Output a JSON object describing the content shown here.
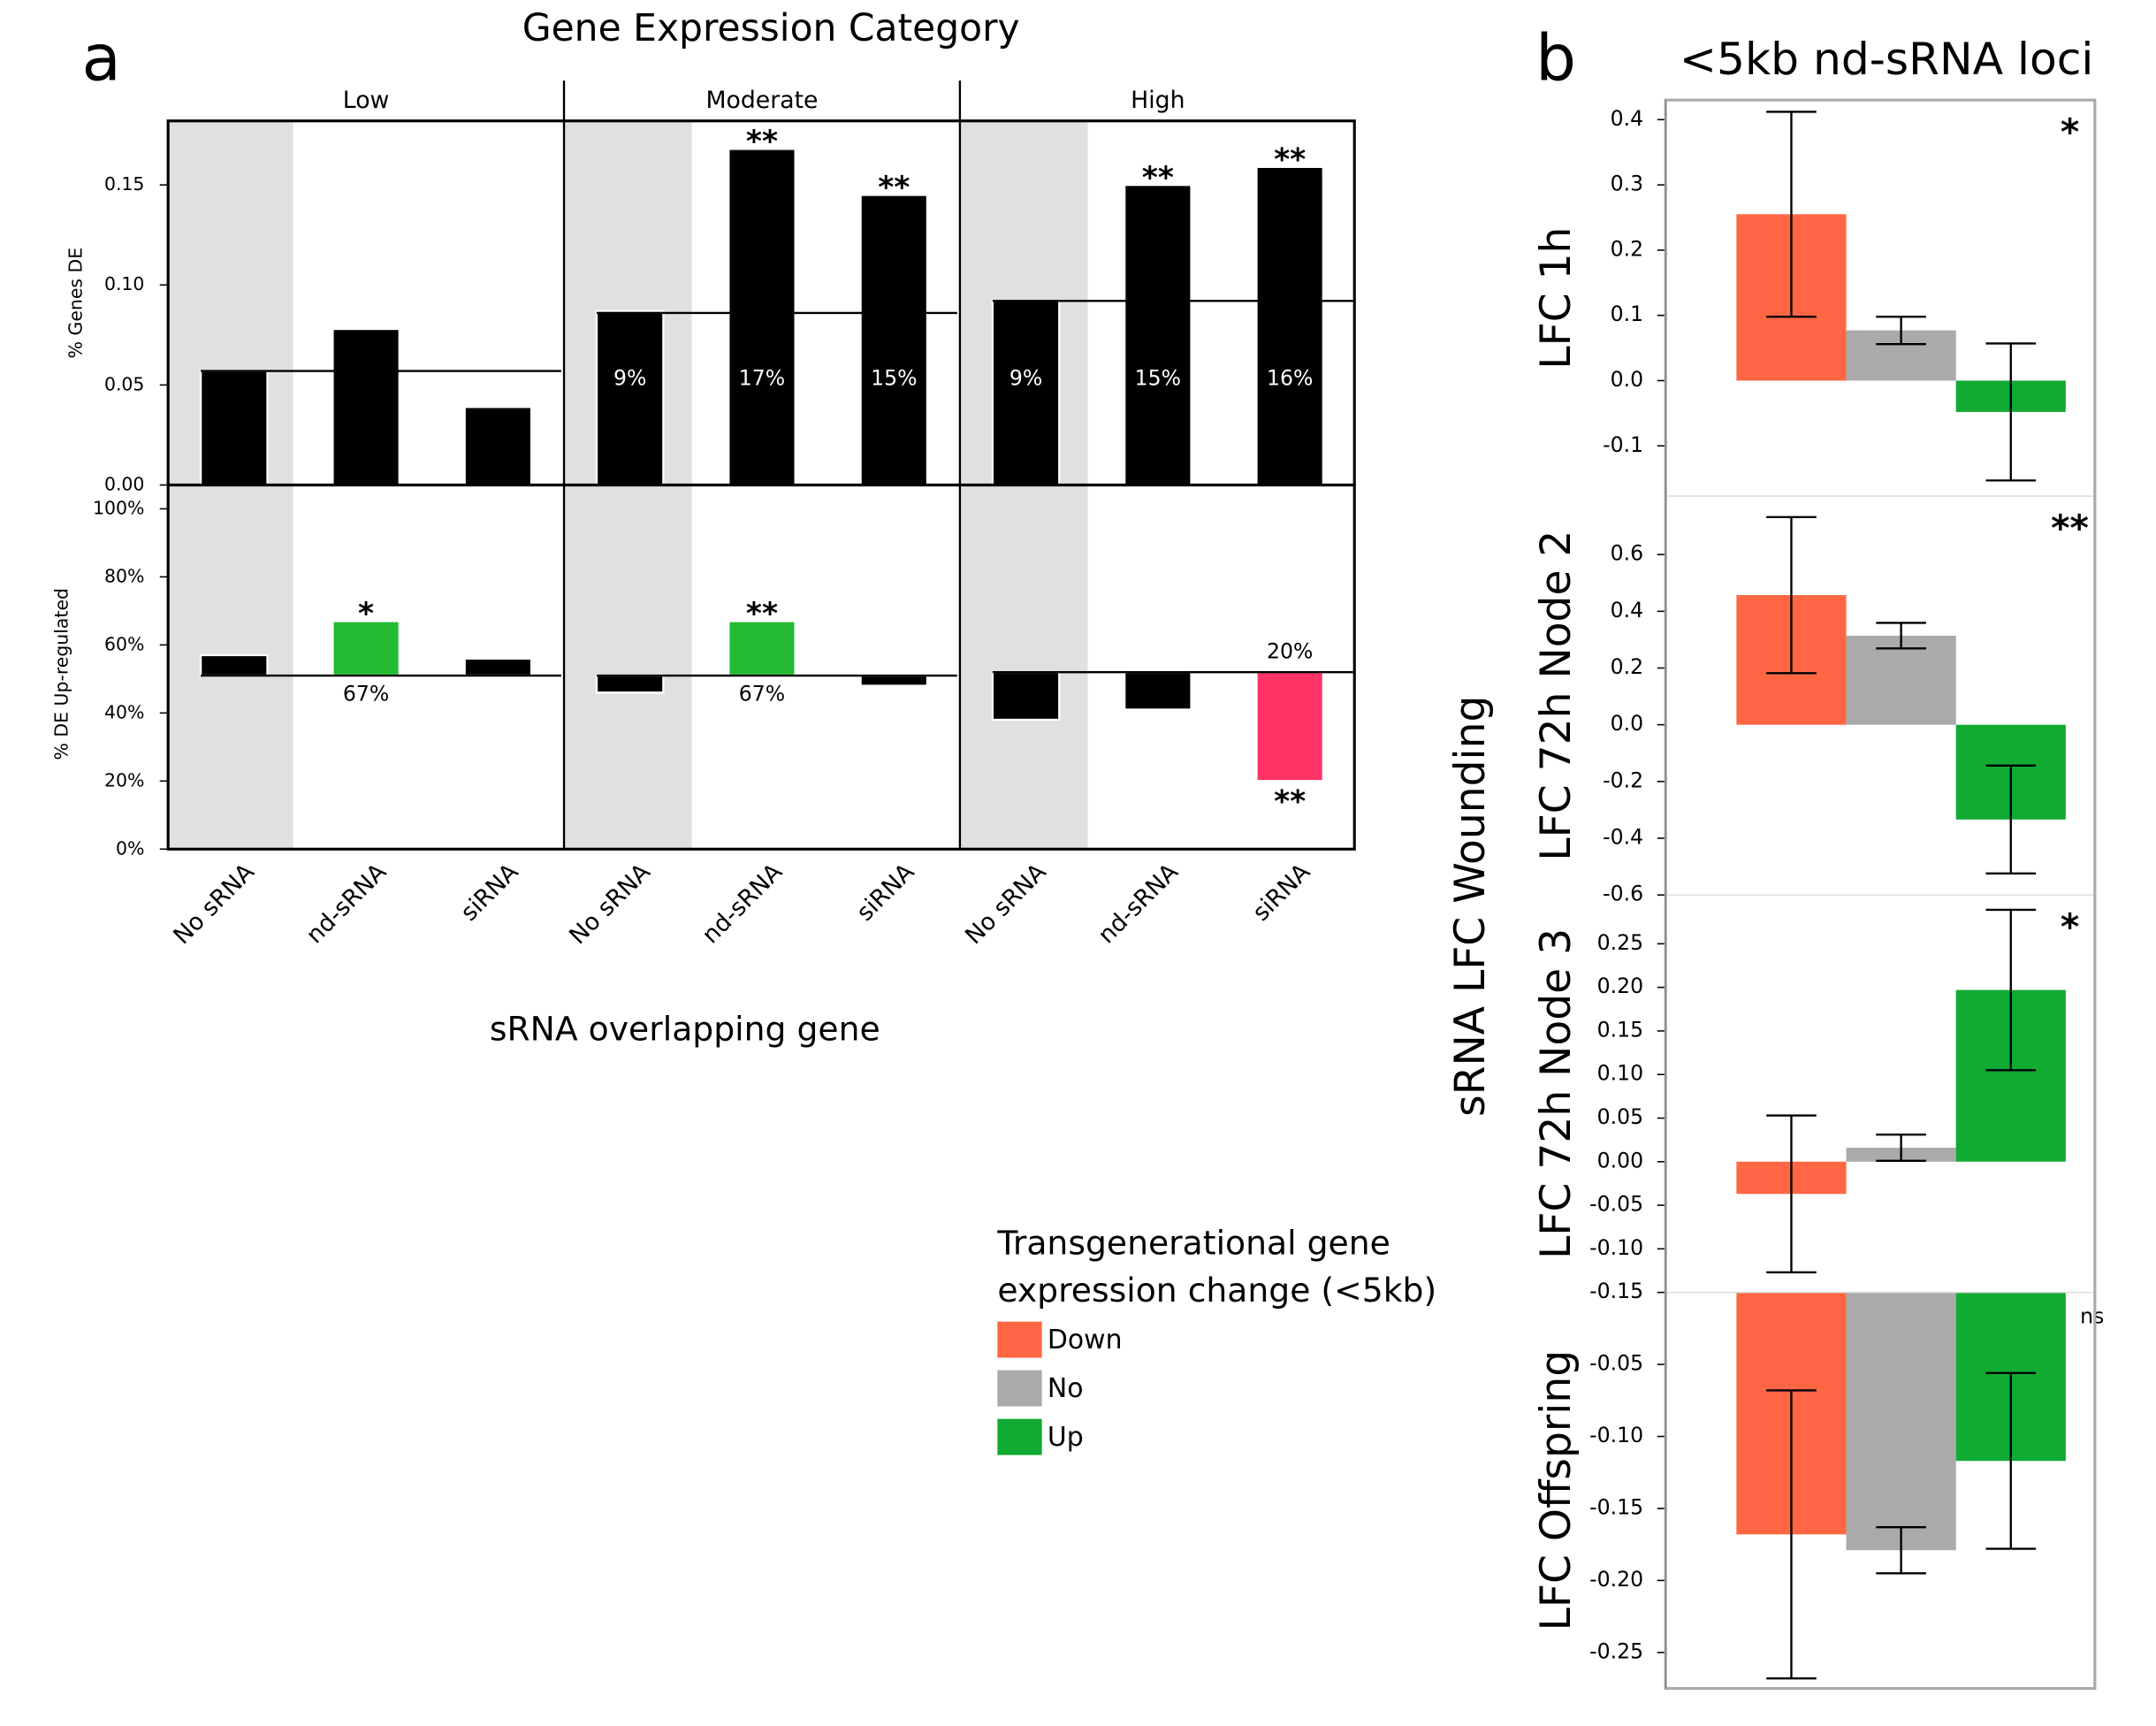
{
  "chart_data": [
    {
      "type": "bar",
      "panel_label": "a",
      "title": "Gene Expression Category",
      "groups": [
        "Low",
        "Moderate",
        "High"
      ],
      "ylabel": "% Genes DE",
      "ylim": [
        0,
        0.182
      ],
      "yticks": [
        {
          "value": 0,
          "label": "0.00"
        },
        0.05,
        {
          "value": 0.1,
          "label": "0.10"
        },
        0.15
      ],
      "values": [
        0.057,
        0.078,
        0.039,
        0.087,
        0.168,
        0.145,
        0.092,
        0.15,
        0.159
      ],
      "value_labels": [
        null,
        null,
        null,
        "9%",
        "17%",
        "15%",
        "9%",
        "15%",
        "16%"
      ],
      "significance": [
        null,
        null,
        null,
        null,
        "**",
        "**",
        null,
        "**",
        "**"
      ],
      "reference_lines": [
        0.057,
        0.086,
        0.092
      ],
      "color": "#000000"
    },
    {
      "type": "bar",
      "ylabel": "% DE Up-regulated",
      "xlabel": "sRNA overlapping gene",
      "categories": [
        "No sRNA",
        "nd-sRNA",
        "siRNA",
        "No sRNA",
        "nd-sRNA",
        "siRNA",
        "No sRNA",
        "nd-sRNA",
        "siRNA"
      ],
      "ylim": [
        0,
        107
      ],
      "yticks": [
        {
          "value": 0,
          "label": "0%"
        },
        {
          "value": 20,
          "label": "20%"
        },
        {
          "value": 40,
          "label": "40%"
        },
        {
          "value": 60,
          "label": "60%"
        },
        {
          "value": 80,
          "label": "80%"
        },
        {
          "value": 100,
          "label": "100%"
        }
      ],
      "values": [
        57,
        67,
        56,
        46,
        67,
        48,
        38,
        41,
        20
      ],
      "value_labels": [
        null,
        "67%",
        null,
        null,
        "67%",
        null,
        null,
        null,
        "20%"
      ],
      "significance": [
        null,
        "*",
        null,
        null,
        "**",
        null,
        null,
        null,
        "**"
      ],
      "reference_lines": [
        51,
        51,
        52
      ],
      "bars_from_reference": true,
      "colors": [
        "#000000",
        "#22bb33",
        "#000000",
        "#000000",
        "#22bb33",
        "#000000",
        "#000000",
        "#000000",
        "#ff3366"
      ]
    },
    {
      "type": "bar",
      "panel_label": "b",
      "title": "<5kb nd-sRNA loci",
      "shared_ylabel": "sRNA LFC Wounding",
      "legend_title": [
        "Transgenerational gene",
        "expression change (<5kb)"
      ],
      "legend": [
        {
          "name": "Down",
          "color": "#ff6644"
        },
        {
          "name": "No",
          "color": "#aaaaaa"
        },
        {
          "name": "Up",
          "color": "#11aa33"
        }
      ],
      "ylabel": "LFC 1h",
      "ylim": [
        -0.177,
        0.43
      ],
      "yticks": [
        0.4,
        0.3,
        0.2,
        0.1,
        {
          "value": 0,
          "label": "0.0"
        },
        -0.1
      ],
      "values": [
        0.255,
        0.077,
        -0.048
      ],
      "errors": [
        0.157,
        0.021,
        0.105
      ],
      "significance": "*"
    },
    {
      "type": "bar",
      "ylabel": "LFC 72h Node 2",
      "ylim": [
        -0.6,
        0.806
      ],
      "yticks": [
        0.6,
        0.4,
        0.2,
        {
          "value": 0,
          "label": "0.0"
        },
        -0.2,
        -0.4,
        -0.6
      ],
      "values": [
        0.457,
        0.314,
        -0.334
      ],
      "errors": [
        0.275,
        0.045,
        0.19
      ],
      "significance": "**"
    },
    {
      "type": "bar",
      "ylabel": "LFC 72h Node 3",
      "ylim": [
        -0.15,
        0.306
      ],
      "yticks": [
        0.25,
        {
          "value": 0.2,
          "label": "0.20"
        },
        0.15,
        {
          "value": 0.1,
          "label": "0.10"
        },
        0.05,
        {
          "value": 0,
          "label": "0.00"
        },
        -0.05,
        {
          "value": -0.1,
          "label": "-0.10"
        },
        -0.15
      ],
      "values": [
        -0.037,
        0.016,
        0.197
      ],
      "errors": [
        0.09,
        0.015,
        0.092
      ],
      "significance": "*"
    },
    {
      "type": "bar",
      "ylabel": "LFC Offspring",
      "ylim": [
        -0.275,
        0
      ],
      "yticks": [
        -0.05,
        {
          "value": -0.1,
          "label": "-0.10"
        },
        -0.15,
        {
          "value": -0.2,
          "label": "-0.20"
        },
        -0.25
      ],
      "values": [
        -0.168,
        -0.179,
        -0.117
      ],
      "errors": [
        0.1,
        0.016,
        0.061
      ],
      "significance": "ns"
    }
  ]
}
